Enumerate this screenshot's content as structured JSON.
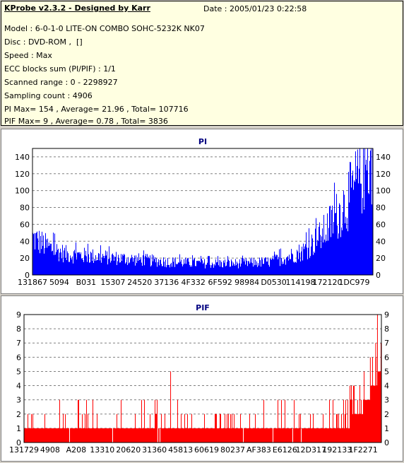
{
  "header": {
    "title": "KProbe v2.3.2 - Designed by Karr",
    "date": "Date : 2005/01/23 0:22:58",
    "lines": [
      "Model : 6-0-1-0 LITE-ON COMBO SOHC-5232K NK07",
      "Disc : DVD-ROM ,  []",
      "Speed : Max",
      "ECC blocks sum (PI/PIF) : 1/1",
      "Scanned range : 0 - 2298927",
      "Sampling count : 4906",
      "PI Max= 154 , Average= 21.96 , Total= 107716",
      "PIF Max= 9 , Average= 0.78 , Total= 3836"
    ]
  },
  "colors": {
    "pi": "#0000ff",
    "pif": "#ff0000",
    "grid": "#808080"
  },
  "chart_data": [
    {
      "type": "bar",
      "title": "PI",
      "ylim": [
        0,
        150
      ],
      "yticks": [
        0,
        20,
        40,
        60,
        80,
        100,
        120,
        140
      ],
      "xtick_labels": [
        "131867",
        "5094",
        "B031",
        "15307",
        "24520",
        "37136",
        "4F332",
        "6F592",
        "98984",
        "D0530",
        "114198",
        "172120",
        "1DC979"
      ],
      "grid": true,
      "profile": {
        "x": [
          0,
          0.05,
          0.1,
          0.2,
          0.3,
          0.4,
          0.5,
          0.6,
          0.7,
          0.75,
          0.8,
          0.85,
          0.9,
          0.94,
          0.97,
          1.0
        ],
        "y": [
          45,
          33,
          25,
          22,
          19,
          16,
          14,
          14,
          16,
          22,
          30,
          48,
          75,
          100,
          125,
          140
        ]
      },
      "max": 154,
      "average": 21.96
    },
    {
      "type": "bar",
      "title": "PIF",
      "ylim": [
        0,
        9
      ],
      "yticks": [
        0,
        1,
        2,
        3,
        4,
        5,
        6,
        7,
        8,
        9
      ],
      "xtick_labels": [
        "131729",
        "4908",
        "A208",
        "13310",
        "20620",
        "31360",
        "45813",
        "60619",
        "80237",
        "AF383",
        "E6126",
        "12D317",
        "192133",
        "1F2271"
      ],
      "grid": true,
      "profile": {
        "x": [
          0,
          0.85,
          0.9,
          0.94,
          0.97,
          1.0
        ],
        "y": [
          1,
          1,
          1.3,
          2,
          3.5,
          5
        ]
      },
      "spikes": [
        {
          "x": 0.41,
          "y": 5
        },
        {
          "x": 0.99,
          "y": 9
        },
        {
          "x": 0.985,
          "y": 7
        },
        {
          "x": 0.97,
          "y": 6
        }
      ],
      "max": 9,
      "average": 0.78
    }
  ]
}
